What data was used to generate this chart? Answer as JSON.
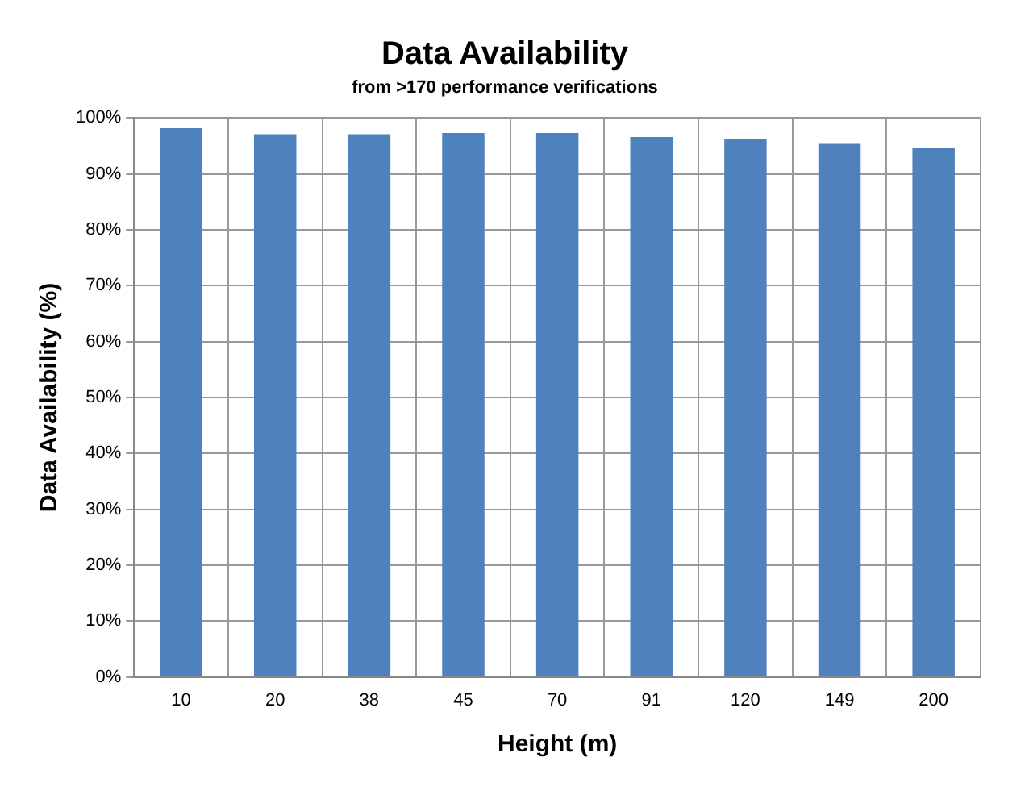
{
  "chart_data": {
    "type": "bar",
    "title": "Data Availability",
    "subtitle": "from >170 performance verifications",
    "xlabel": "Height (m)",
    "ylabel": "Data Availability (%)",
    "categories": [
      "10",
      "20",
      "38",
      "45",
      "70",
      "91",
      "120",
      "149",
      "200"
    ],
    "values": [
      98.2,
      97.1,
      97.1,
      97.3,
      97.3,
      96.6,
      96.3,
      95.5,
      94.7
    ],
    "color": "#4f81bd",
    "ylim": [
      0,
      100
    ],
    "yticks": [
      {
        "value": 0,
        "label": "0%"
      },
      {
        "value": 10,
        "label": "10%"
      },
      {
        "value": 20,
        "label": "20%"
      },
      {
        "value": 30,
        "label": "30%"
      },
      {
        "value": 40,
        "label": "40%"
      },
      {
        "value": 50,
        "label": "50%"
      },
      {
        "value": 60,
        "label": "60%"
      },
      {
        "value": 70,
        "label": "70%"
      },
      {
        "value": 80,
        "label": "80%"
      },
      {
        "value": 90,
        "label": "90%"
      },
      {
        "value": 100,
        "label": "100%"
      }
    ],
    "grid": true
  }
}
